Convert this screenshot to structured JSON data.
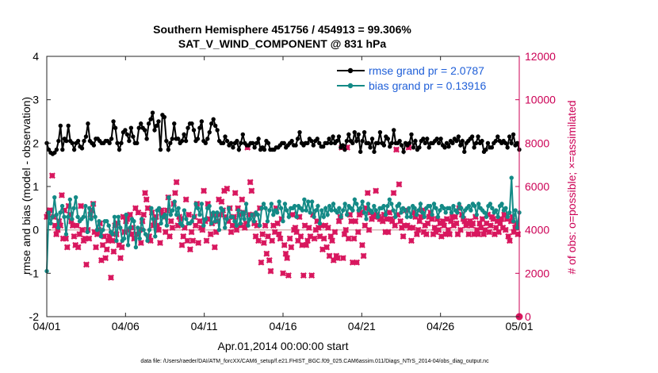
{
  "chart_data": {
    "type": "line",
    "title_line1": "Southern Hemisphere 451756 / 454913 = 99.306%",
    "title_line2": "SAT_V_WIND_COMPONENT @ 831 hPa",
    "xlabel": "Apr.01,2014 00:00:00 start",
    "ylabel_left": "rmse and bias (model - observation)",
    "ylabel_right": "# of obs: o=possible; ×=assimilated",
    "footer": "data file: /Users/raeder/DAI/ATM_forcXX/CAM6_setup/f.e21.FHIST_BGC.f09_025.CAM6assim.011/Diags_NTrS_2014-04/obs_diag_output.nc",
    "xlim": [
      0,
      30
    ],
    "ylim_left": [
      -2,
      4
    ],
    "ylim_right": [
      0,
      12000
    ],
    "x_ticks": [
      0,
      5,
      10,
      15,
      20,
      25,
      30
    ],
    "x_tick_labels": [
      "04/01",
      "04/06",
      "04/11",
      "04/16",
      "04/21",
      "04/26",
      "05/01"
    ],
    "y_ticks_left": [
      "-2",
      "-1",
      "0",
      "1",
      "2",
      "3",
      "4"
    ],
    "y_ticks_right": [
      "0",
      "2000",
      "4000",
      "6000",
      "8000",
      "10000",
      "12000"
    ],
    "zero_line": 0,
    "colors": {
      "rmse": "#000000",
      "bias": "#138a86",
      "obs": "#d8175e",
      "axis_right": "#cc0055",
      "legend_text": "#1f5fd8",
      "zero_line": "#d8b8b8"
    },
    "series": [
      {
        "name": "rmse grand pr = 2.0787",
        "axis": "left",
        "values": [
          2.0,
          1.85,
          1.78,
          1.75,
          1.78,
          1.85,
          2.05,
          2.4,
          1.85,
          2.1,
          2.05,
          2.4,
          2.05,
          2.0,
          1.85,
          2.0,
          2.05,
          1.92,
          1.88,
          2.05,
          2.15,
          2.45,
          2.05,
          2.0,
          1.95,
          2.1,
          2.1,
          2.05,
          2.0,
          2.0,
          2.05,
          2.05,
          2.0,
          2.1,
          2.5,
          2.35,
          2.0,
          1.85,
          2.0,
          2.25,
          2.3,
          2.2,
          2.05,
          2.35,
          2.15,
          2.0,
          2.0,
          2.35,
          2.45,
          2.35,
          2.3,
          2.1,
          2.45,
          2.55,
          2.7,
          2.3,
          2.4,
          2.5,
          1.85,
          2.65,
          2.6,
          2.05,
          1.85,
          2.0,
          2.1,
          2.45,
          2.1,
          2.1,
          2.0,
          2.05,
          2.2,
          2.05,
          2.35,
          2.45,
          2.45,
          2.3,
          2.05,
          2.1,
          2.35,
          2.5,
          2.05,
          2.0,
          2.1,
          2.25,
          2.45,
          2.55,
          2.4,
          2.3,
          2.05,
          2.0,
          2.0,
          2.15,
          2.05,
          1.95,
          2.0,
          1.9,
          2.0,
          2.05,
          1.85,
          2.0,
          2.2,
          2.0,
          1.95,
          1.95,
          2.0,
          2.0,
          1.9,
          2.0,
          2.1,
          1.85,
          1.9,
          1.85,
          2.05,
          2.0,
          1.85,
          1.85,
          1.85,
          1.9,
          1.9,
          1.95,
          2.0,
          2.0,
          1.9,
          1.95,
          2.0,
          2.05,
          1.95,
          1.95,
          2.1,
          2.25,
          2.0,
          1.95,
          2.0,
          2.0,
          2.1,
          2.05,
          1.95,
          2.05,
          2.1,
          2.0,
          1.92,
          1.92,
          2.0,
          2.0,
          2.1,
          2.0,
          2.15,
          2.0,
          2.05,
          2.15,
          1.9,
          1.95,
          1.85,
          2.05,
          2.2,
          2.05,
          2.0,
          2.25,
          2.05,
          2.2,
          1.8,
          2.05,
          2.25,
          2.0,
          2.0,
          1.9,
          2.1,
          1.8,
          2.0,
          2.0,
          2.25,
          2.0,
          1.95,
          2.15,
          2.1,
          1.92,
          2.0,
          2.3,
          2.0,
          2.0,
          2.05,
          1.95,
          1.8,
          2.0,
          1.95,
          2.0,
          2.2,
          1.9,
          2.05,
          1.85,
          1.9,
          2.05,
          2.1,
          2.0,
          2.1,
          1.9,
          2.0,
          2.0,
          2.05,
          2.1,
          2.0,
          2.1,
          1.95,
          1.9,
          2.0,
          1.92,
          2.05,
          2.0,
          2.1,
          2.05,
          2.15,
          1.95,
          2.05,
          1.8,
          2.0,
          2.05,
          2.1,
          2.15,
          1.9,
          2.0,
          2.15,
          2.0,
          2.05,
          1.8,
          1.85,
          2.0,
          1.9,
          1.9,
          2.0,
          2.05,
          2.15,
          2.05,
          2.0,
          2.05,
          2.0,
          1.9,
          2.15,
          2.0,
          2.2,
          1.95,
          2.0,
          1.85
        ]
      },
      {
        "name": "bias grand pr = 0.13916",
        "axis": "left",
        "values": [
          -0.95,
          0.4,
          0.15,
          0.3,
          0.75,
          0.35,
          0.05,
          0.4,
          0.55,
          0.3,
          -0.1,
          0.3,
          0.7,
          0.25,
          0.5,
          0.75,
          0.3,
          0.2,
          0.25,
          0.3,
          0.55,
          -0.05,
          0.5,
          0.25,
          0.6,
          0.3,
          0.0,
          0.2,
          -0.15,
          0.0,
          0.2,
          0.2,
          0.1,
          -0.05,
          -0.1,
          0.3,
          -0.25,
          0.3,
          0.05,
          -0.25,
          -0.2,
          0.35,
          -0.35,
          0.05,
          0.25,
          0.2,
          -0.4,
          0.05,
          -0.2,
          0.25,
          0.0,
          -0.1,
          -0.25,
          0.0,
          0.5,
          0.25,
          -0.15,
          0.45,
          0.5,
          0.15,
          0.3,
          0.35,
          0.1,
          0.75,
          0.35,
          0.45,
          0.65,
          0.35,
          0.5,
          0.15,
          0.1,
          0.45,
          0.25,
          0.15,
          0.15,
          0.2,
          0.3,
          0.6,
          0.5,
          0.35,
          0.6,
          0.1,
          0.25,
          0.5,
          0.55,
          0.15,
          0.4,
          0.2,
          0.4,
          0.0,
          0.5,
          0.45,
          0.05,
          0.25,
          0.5,
          0.3,
          0.3,
          0.2,
          0.1,
          0.45,
          0.15,
          0.4,
          0.25,
          0.6,
          0.1,
          0.25,
          0.35,
          0.2,
          0.4,
          0.35,
          0.1,
          0.5,
          0.6,
          0.5,
          0.2,
          0.45,
          0.6,
          0.35,
          0.45,
          0.4,
          0.65,
          0.5,
          0.2,
          0.6,
          0.45,
          0.3,
          0.5,
          0.5,
          0.55,
          0.3,
          0.55,
          0.5,
          0.45,
          0.7,
          0.45,
          0.65,
          0.4,
          0.65,
          0.3,
          0.45,
          0.55,
          0.15,
          0.45,
          0.3,
          0.5,
          0.35,
          0.55,
          0.45,
          0.6,
          0.45,
          0.4,
          0.5,
          0.3,
          0.45,
          0.6,
          0.35,
          0.55,
          0.5,
          0.45,
          0.7,
          0.6,
          0.45,
          0.5,
          0.65,
          0.4,
          0.25,
          0.6,
          0.45,
          0.4,
          0.55,
          0.45,
          0.3,
          0.5,
          0.5,
          0.55,
          0.35,
          0.55,
          0.7,
          0.6,
          0.45,
          0.3,
          0.55,
          0.6,
          0.4,
          0.5,
          0.45,
          0.3,
          0.5,
          0.3,
          0.55,
          0.5,
          0.35,
          0.45,
          0.6,
          0.4,
          0.3,
          0.5,
          0.55,
          0.55,
          0.35,
          0.6,
          0.5,
          0.3,
          0.45,
          0.55,
          0.5,
          0.4,
          0.5,
          0.5,
          0.4,
          0.55,
          0.45,
          0.4,
          0.6,
          0.5,
          0.3,
          0.45,
          0.5,
          0.55,
          0.45,
          0.6,
          0.55,
          0.35,
          0.6,
          0.5,
          0.45,
          0.4,
          0.3,
          0.55,
          0.6,
          0.5,
          0.4,
          0.45,
          0.3,
          0.55,
          0.6,
          0.45,
          0.5,
          0.3,
          0.4,
          1.2,
          0.2,
          0.45,
          0.05,
          0.4
        ]
      }
    ],
    "obs_series": {
      "name": "# of obs assimilated",
      "axis": "right",
      "marker": "×",
      "values": [
        4600,
        4700,
        4900,
        4900,
        6500,
        4600,
        4200,
        3800,
        4000,
        4400,
        4200,
        5600,
        3600,
        4900,
        3600,
        3200,
        5100,
        4700,
        4400,
        4200,
        3700,
        3300,
        4200,
        3200,
        3800,
        5100,
        4000,
        3500,
        3600,
        2400,
        4000,
        3600,
        4700,
        4900,
        5200,
        3900,
        3200,
        3800,
        4000,
        4300,
        2600,
        3300,
        3700,
        2700,
        3100,
        3500,
        3700,
        1800,
        3500,
        3000,
        4200,
        3800,
        4300,
        3300,
        2700,
        3200,
        4600,
        3900,
        4400,
        4500,
        4000,
        4700,
        3800,
        4100,
        3600,
        5000,
        3800,
        4800,
        4000,
        3400,
        4400,
        4700,
        5700,
        5400,
        5000,
        3700,
        3500,
        4800,
        4200,
        4400,
        4600,
        4200,
        4000,
        3400,
        4900,
        4700,
        4600,
        3900,
        4900,
        5500,
        3700,
        4400,
        4100,
        5200,
        5700,
        6200,
        4200,
        4600,
        4500,
        3300,
        3700,
        4100,
        5400,
        3500,
        4700,
        3100,
        3900,
        3500,
        4600,
        4200,
        5200,
        3400,
        4400,
        4100,
        4000,
        5800,
        4400,
        3500,
        5200,
        4500,
        3800,
        4300,
        4700,
        3200,
        3900,
        4400,
        5400,
        4700,
        5300,
        4900,
        5800,
        4600,
        5900,
        4400,
        5000,
        3900,
        4200,
        4600,
        5700,
        4000,
        5000,
        4700,
        4200,
        5400,
        4800,
        4100,
        4300,
        7800,
        4700,
        6200,
        5800,
        4700,
        4300,
        3700,
        4200,
        3500,
        5000,
        2500,
        3800,
        3400,
        4200,
        2900,
        3700,
        2600,
        2100,
        3500,
        4200,
        3900,
        5000,
        4300,
        3800,
        3600,
        4500,
        2000,
        3300,
        2900,
        2700,
        1900,
        3600,
        3200,
        4700,
        4000,
        4100,
        3900,
        3500,
        4600,
        3700,
        3300,
        1900,
        4200,
        3300,
        3500,
        4100,
        3700,
        1900,
        4700,
        3600,
        4000,
        4400,
        4100,
        3700,
        4200,
        3100,
        3600,
        4200,
        3200,
        4100,
        2800,
        3700,
        3500,
        2600,
        3900,
        2800,
        2700,
        4400,
        4600,
        7800,
        2700,
        3800,
        4000,
        7800,
        3600,
        4700,
        4400,
        2500,
        3600,
        4400,
        2500,
        3900,
        4700,
        4800,
        3300,
        2800,
        4200,
        5000,
        5700,
        4000,
        4800,
        4500,
        4700,
        4600,
        5800,
        4700,
        4600,
        4500,
        4500,
        4400,
        4700,
        3900,
        4500,
        3900,
        4800,
        4500,
        4400,
        5700,
        4200,
        7700,
        4700,
        6100,
        4400,
        4100,
        3700,
        4200,
        4900,
        4200,
        7800,
        4100,
        3500,
        4100,
        4800,
        4600,
        3800,
        4000,
        4400,
        4600,
        4900,
        3900,
        4200,
        3800,
        4300,
        4600,
        4800,
        4500,
        3800,
        4100,
        3900,
        4500,
        4000,
        4300,
        3700,
        4400,
        4200,
        3800,
        4500,
        4000,
        3800,
        4400,
        4600,
        4200,
        4600,
        4300,
        3800,
        5000,
        4000,
        4700,
        4500,
        4400,
        4200,
        4300,
        3800,
        4400,
        4200,
        4300,
        3800,
        4600,
        4000,
        3800,
        4300,
        4100,
        4500,
        3800,
        4000,
        4300,
        4700,
        3900,
        4200,
        4600,
        4500,
        3800,
        4100,
        4400,
        3900,
        4300,
        4500,
        4100,
        4700,
        4000,
        4500,
        3700,
        3500,
        4400,
        4600,
        3900,
        4100,
        4300,
        3800,
        0
      ],
      "possible_marker": "o",
      "possible_last": 0
    }
  }
}
